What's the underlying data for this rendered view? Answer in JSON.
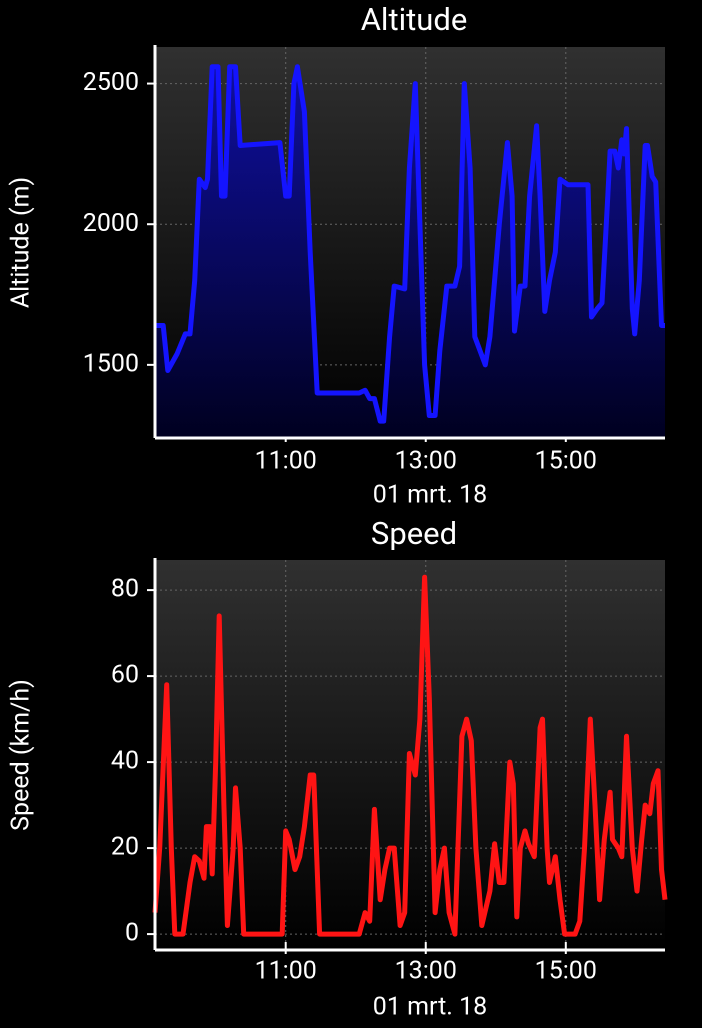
{
  "chart_data": [
    {
      "type": "area",
      "title": "Altitude",
      "ylabel": "Altitude (m)",
      "xlabel": "01 mrt. 18",
      "color": "#1414ff",
      "x": [
        "09:08",
        "09:15",
        "09:19",
        "09:27",
        "09:34",
        "09:38",
        "09:42",
        "09:46",
        "09:51",
        "09:53",
        "09:57",
        "10:02",
        "10:05",
        "10:08",
        "10:12",
        "10:17",
        "10:21",
        "10:55",
        "11:00",
        "11:03",
        "11:07",
        "11:10",
        "11:16",
        "11:21",
        "11:27",
        "12:03",
        "12:08",
        "12:12",
        "12:16",
        "12:21",
        "12:24",
        "12:29",
        "12:33",
        "12:42",
        "12:46",
        "12:51",
        "12:55",
        "12:59",
        "13:03",
        "13:08",
        "13:12",
        "13:18",
        "13:25",
        "13:29",
        "13:33",
        "13:38",
        "13:42",
        "13:51",
        "13:55",
        "13:59",
        "14:03",
        "14:10",
        "14:14",
        "14:16",
        "14:21",
        "14:25",
        "14:29",
        "14:35",
        "14:38",
        "14:42",
        "14:46",
        "14:51",
        "14:55",
        "15:02",
        "15:19",
        "15:22",
        "15:27",
        "15:31",
        "15:36",
        "15:38",
        "15:42",
        "15:45",
        "15:48",
        "15:50",
        "15:52",
        "15:57",
        "15:59",
        "16:03",
        "16:08",
        "16:10",
        "16:14",
        "16:17",
        "16:22",
        "16:25"
      ],
      "values": [
        1640,
        1640,
        1480,
        1540,
        1610,
        1610,
        1800,
        2160,
        2130,
        2160,
        2560,
        2560,
        2100,
        2100,
        2560,
        2560,
        2280,
        2290,
        2100,
        2100,
        2500,
        2560,
        2400,
        1900,
        1400,
        1400,
        1410,
        1380,
        1380,
        1300,
        1300,
        1600,
        1780,
        1770,
        2200,
        2500,
        2000,
        1500,
        1320,
        1320,
        1550,
        1780,
        1780,
        1850,
        2500,
        2200,
        1600,
        1500,
        1600,
        1800,
        2000,
        2290,
        2100,
        1620,
        1780,
        1780,
        2100,
        2350,
        2100,
        1690,
        1800,
        1900,
        2160,
        2140,
        2140,
        1670,
        1700,
        1720,
        2100,
        2260,
        2260,
        2200,
        2300,
        2250,
        2340,
        1700,
        1610,
        1800,
        2280,
        2280,
        2170,
        2150,
        1640,
        1640
      ],
      "xlim": [
        "09:08",
        "16:25"
      ],
      "xticks": [
        "11:00",
        "13:00",
        "15:00"
      ],
      "ylim": [
        1240,
        2630
      ],
      "yticks": [
        1500,
        2000,
        2500
      ],
      "grid": true
    },
    {
      "type": "line",
      "title": "Speed",
      "ylabel": "Speed (km/h)",
      "xlabel": "01 mrt. 18",
      "color": "#ff1414",
      "x": [
        "09:08",
        "09:12",
        "09:18",
        "09:22",
        "09:25",
        "09:32",
        "09:38",
        "09:42",
        "09:46",
        "09:50",
        "09:52",
        "09:55",
        "09:57",
        "10:00",
        "10:03",
        "10:07",
        "10:10",
        "10:15",
        "10:17",
        "10:21",
        "10:24",
        "10:57",
        "11:00",
        "11:03",
        "11:08",
        "11:12",
        "11:16",
        "11:21",
        "11:24",
        "11:29",
        "12:03",
        "12:08",
        "12:12",
        "12:16",
        "12:21",
        "12:25",
        "12:29",
        "12:33",
        "12:38",
        "12:42",
        "12:46",
        "12:51",
        "12:55",
        "12:59",
        "13:03",
        "13:08",
        "13:12",
        "13:16",
        "13:20",
        "13:25",
        "13:31",
        "13:35",
        "13:39",
        "13:43",
        "13:48",
        "13:55",
        "13:59",
        "14:03",
        "14:07",
        "14:12",
        "14:15",
        "14:18",
        "14:21",
        "14:25",
        "14:28",
        "14:33",
        "14:38",
        "14:40",
        "14:44",
        "14:46",
        "14:51",
        "14:55",
        "14:59",
        "15:08",
        "15:12",
        "15:16",
        "15:21",
        "15:25",
        "15:29",
        "15:33",
        "15:38",
        "15:40",
        "15:45",
        "15:48",
        "15:52",
        "15:57",
        "16:01",
        "16:05",
        "16:08",
        "16:12",
        "16:15",
        "16:19",
        "16:22",
        "16:25"
      ],
      "values": [
        5,
        20,
        58,
        20,
        0,
        0,
        12,
        18,
        17,
        13,
        25,
        25,
        14,
        40,
        74,
        30,
        2,
        20,
        34,
        20,
        0,
        0,
        24,
        22,
        15,
        18,
        25,
        37,
        37,
        0,
        0,
        5,
        3,
        29,
        8,
        15,
        20,
        20,
        2,
        5,
        42,
        37,
        50,
        83,
        55,
        5,
        15,
        20,
        5,
        0,
        46,
        50,
        45,
        20,
        2,
        10,
        21,
        12,
        12,
        40,
        35,
        4,
        20,
        24,
        21,
        18,
        48,
        50,
        20,
        12,
        18,
        8,
        0,
        0,
        3,
        20,
        50,
        30,
        8,
        22,
        33,
        22,
        20,
        18,
        46,
        20,
        10,
        22,
        30,
        28,
        35,
        38,
        15,
        8
      ],
      "xlim": [
        "09:08",
        "16:25"
      ],
      "xticks": [
        "11:00",
        "13:00",
        "15:00"
      ],
      "ylim": [
        -3.7,
        87
      ],
      "yticks": [
        0,
        20,
        40,
        60,
        80
      ],
      "grid": true
    }
  ]
}
